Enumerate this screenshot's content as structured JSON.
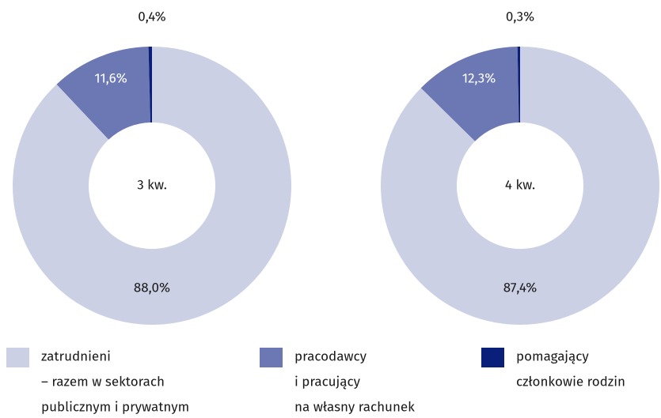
{
  "chart_data": [
    {
      "type": "pie",
      "center_label": "3 kw.",
      "values": [
        88.0,
        11.6,
        0.4
      ],
      "value_labels": [
        "88,0%",
        "11,6%",
        "0,4%"
      ]
    },
    {
      "type": "pie",
      "center_label": "4 kw.",
      "values": [
        87.4,
        12.3,
        0.3
      ],
      "value_labels": [
        "87,4%",
        "12,3%",
        "0,3%"
      ]
    }
  ],
  "legend": [
    {
      "lines": [
        "zatrudnieni",
        "– razem w sektorach",
        "publicznym i prywatnym"
      ],
      "color": "#ccd0e5"
    },
    {
      "lines": [
        "pracodawcy",
        "i pracujący",
        "na własny rachunek"
      ],
      "color": "#6b78b4"
    },
    {
      "lines": [
        "pomagający",
        "członkowie rodzin"
      ],
      "color": "#0a1f7a"
    }
  ]
}
